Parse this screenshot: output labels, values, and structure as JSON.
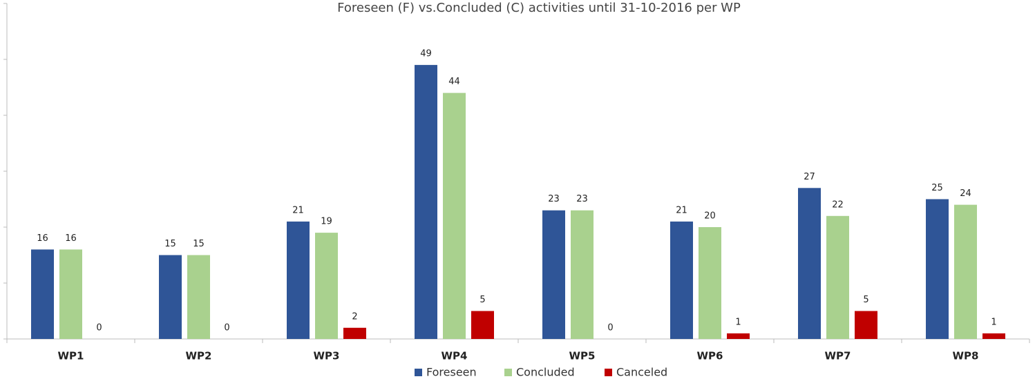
{
  "chart_data": {
    "type": "bar",
    "title": "Foreseen (F) vs.Concluded (C) activities  until 31-10-2016 per WP",
    "categories": [
      "WP1",
      "WP2",
      "WP3",
      "WP4",
      "WP5",
      "WP6",
      "WP7",
      "WP8"
    ],
    "series": [
      {
        "name": "Foreseen",
        "color": "#2f5597",
        "values": [
          16,
          15,
          21,
          49,
          23,
          21,
          27,
          25
        ]
      },
      {
        "name": "Concluded",
        "color": "#a9d18e",
        "values": [
          16,
          15,
          19,
          44,
          23,
          20,
          22,
          24
        ]
      },
      {
        "name": "Canceled",
        "color": "#c00000",
        "values": [
          0,
          0,
          2,
          5,
          0,
          1,
          5,
          1
        ]
      }
    ],
    "ylim": [
      0,
      60
    ],
    "yticks": [
      0,
      10,
      20,
      30,
      40,
      50,
      60
    ],
    "legend": "bottom"
  }
}
